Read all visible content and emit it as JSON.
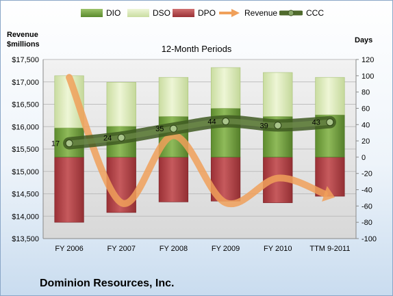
{
  "legend": [
    {
      "label": "DIO",
      "kind": "bar",
      "color": "#6a9a3a"
    },
    {
      "label": "DSO",
      "kind": "bar",
      "color": "#d6e6b4"
    },
    {
      "label": "DPO",
      "kind": "bar",
      "color": "#b3474a"
    },
    {
      "label": "Revenue",
      "kind": "arrow",
      "color": "#f0a05a"
    },
    {
      "label": "CCC",
      "kind": "tube",
      "color": "#4f6a2c"
    }
  ],
  "left_axis_title": [
    "Revenue",
    "$millions"
  ],
  "right_axis_title": "Days",
  "subtitle": "12-Month Periods",
  "company": "Dominion Resources, Inc.",
  "chart_data": {
    "type": "bar",
    "categories": [
      "FY 2006",
      "FY 2007",
      "FY 2008",
      "FY 2009",
      "FY 2010",
      "TTM 9-2011"
    ],
    "left_axis": {
      "min": 13500,
      "max": 17500,
      "step": 500,
      "tick_labels": [
        "$13,500",
        "$14,000",
        "$14,500",
        "$15,000",
        "$15,500",
        "$16,000",
        "$16,500",
        "$17,000",
        "$17,500"
      ]
    },
    "right_axis": {
      "min": -100,
      "max": 120,
      "step": 20,
      "tick_labels": [
        "-100",
        "-80",
        "-60",
        "-40",
        "-20",
        "0",
        "20",
        "40",
        "60",
        "80",
        "100",
        "120"
      ]
    },
    "series": [
      {
        "name": "DIO",
        "axis": "right",
        "values": [
          36,
          38,
          50,
          60,
          50,
          52
        ]
      },
      {
        "name": "DSO",
        "axis": "right",
        "values": [
          64,
          54,
          48,
          50,
          54,
          46
        ]
      },
      {
        "name": "DPO",
        "axis": "right",
        "values": [
          -80,
          -68,
          -55,
          -54,
          -56,
          -48
        ]
      },
      {
        "name": "Revenue",
        "axis": "left",
        "values": [
          17100,
          14300,
          15800,
          14300,
          14850,
          14500
        ]
      },
      {
        "name": "CCC",
        "axis": "right",
        "values": [
          17,
          24,
          35,
          44,
          39,
          43
        ],
        "labels": [
          "17",
          "24",
          "35",
          "44",
          "39",
          "43"
        ]
      }
    ],
    "colors": {
      "dio": "#6a9a3a",
      "dso": "#d6e6b4",
      "dpo": "#b3474a",
      "revenue": "#f0a05a",
      "ccc": "#4f6a2c"
    },
    "grid": true
  }
}
